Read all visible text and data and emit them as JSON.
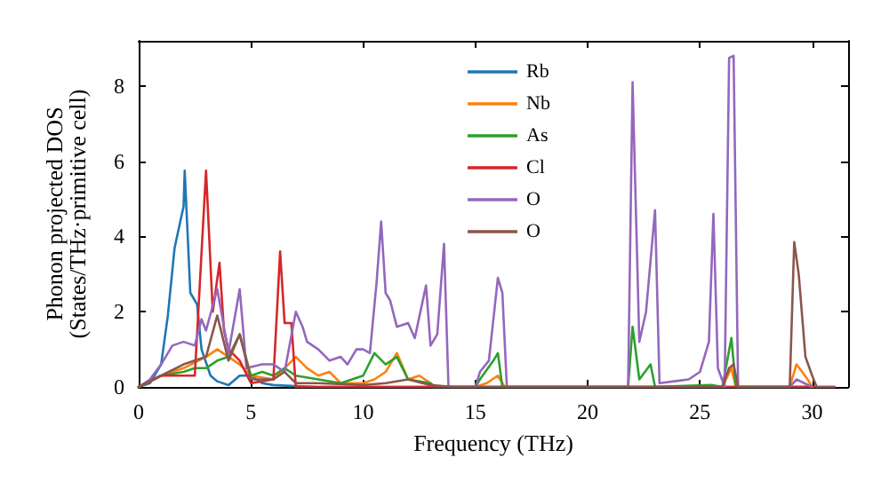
{
  "chart_data": {
    "type": "line",
    "xlabel": "Frequency (THz)",
    "ylabel": "Phonon projected DOS\n(States/THz·primitive cell)",
    "xlim": [
      0,
      31.6
    ],
    "ylim": [
      0,
      9.2
    ],
    "xticks": [
      0,
      5,
      10,
      15,
      20,
      25,
      30
    ],
    "yticks": [
      0,
      2,
      4,
      6,
      8
    ],
    "grid": false,
    "legend": "top",
    "marker": "none",
    "line_style": "solid",
    "series": [
      {
        "name": "Rb",
        "color": "#1f77b4",
        "x": [
          0,
          0.5,
          1,
          1.3,
          1.6,
          2,
          2.05,
          2.3,
          2.6,
          2.8,
          3.2,
          3.5,
          4,
          4.5,
          5,
          5.5,
          6,
          7,
          8,
          30
        ],
        "values": [
          0,
          0.1,
          0.6,
          1.9,
          3.7,
          4.8,
          5.75,
          2.5,
          2.2,
          1.0,
          0.3,
          0.15,
          0.05,
          0.3,
          0.3,
          0.1,
          0.05,
          0.02,
          0,
          0
        ]
      },
      {
        "name": "Nb",
        "color": "#ff7f0e",
        "x": [
          0,
          1,
          2,
          3,
          3.5,
          4,
          4.5,
          5,
          6,
          6.5,
          7,
          7.5,
          8,
          8.5,
          9,
          10,
          10.5,
          11,
          11.5,
          12,
          12.5,
          13,
          13.1,
          15,
          15.5,
          16,
          16.3,
          26,
          26.4,
          26.6,
          29,
          29.3,
          29.8,
          30
        ],
        "values": [
          0,
          0.3,
          0.5,
          0.8,
          1.0,
          0.8,
          0.6,
          0.3,
          0.2,
          0.5,
          0.8,
          0.5,
          0.3,
          0.4,
          0.1,
          0.1,
          0.2,
          0.4,
          0.9,
          0.2,
          0.3,
          0.1,
          0,
          0,
          0.1,
          0.3,
          0,
          0,
          0.5,
          0,
          0,
          0.6,
          0.2,
          0
        ]
      },
      {
        "name": "As",
        "color": "#2ca02c",
        "x": [
          0,
          1,
          2,
          2.5,
          3,
          3.5,
          4,
          4.5,
          5,
          5.5,
          6,
          6.5,
          7,
          8,
          9,
          10,
          10.5,
          11,
          11.5,
          12,
          13,
          13.2,
          15,
          15.2,
          15.8,
          16,
          16.2,
          21.8,
          22,
          22.3,
          22.8,
          23,
          25.5,
          26,
          26.4,
          26.6,
          30
        ],
        "values": [
          0,
          0.3,
          0.4,
          0.5,
          0.5,
          0.7,
          0.8,
          1.4,
          0.3,
          0.4,
          0.3,
          0.5,
          0.3,
          0.2,
          0.1,
          0.3,
          0.9,
          0.6,
          0.8,
          0.2,
          0.1,
          0,
          0,
          0.2,
          0.7,
          0.9,
          0,
          0,
          1.6,
          0.2,
          0.6,
          0,
          0.05,
          0,
          1.3,
          0,
          0
        ]
      },
      {
        "name": "Cl",
        "color": "#d62728",
        "x": [
          0,
          1,
          2,
          2.5,
          3,
          3.3,
          3.6,
          3.8,
          4,
          4.5,
          5,
          6,
          6.3,
          6.5,
          6.8,
          7,
          31
        ],
        "values": [
          0,
          0.3,
          0.3,
          0.3,
          5.75,
          2.0,
          3.3,
          1.5,
          1.0,
          0.7,
          0.1,
          0.2,
          3.6,
          1.7,
          1.7,
          0,
          0
        ]
      },
      {
        "name": "O",
        "color": "#9467bd",
        "x": [
          0,
          0.5,
          1,
          1.5,
          2,
          2.5,
          2.8,
          3,
          3.5,
          4,
          4.5,
          4.8,
          5.5,
          6,
          6.5,
          7,
          7.3,
          7.5,
          8,
          8.5,
          9,
          9.3,
          9.7,
          10,
          10.3,
          10.6,
          10.8,
          11,
          11.2,
          11.5,
          12,
          12.3,
          12.8,
          13,
          13.3,
          13.6,
          13.8,
          15,
          15.2,
          15.6,
          16,
          16.2,
          16.4,
          21.8,
          22,
          22.3,
          22.6,
          23,
          23.2,
          24.5,
          25,
          25.4,
          25.6,
          25.8,
          26.1,
          26.3,
          26.5,
          26.7,
          29,
          29.3,
          30
        ],
        "values": [
          0,
          0.2,
          0.6,
          1.1,
          1.2,
          1.1,
          1.8,
          1.5,
          2.6,
          0.9,
          2.6,
          0.5,
          0.6,
          0.6,
          0.4,
          2.0,
          1.6,
          1.2,
          1.0,
          0.7,
          0.8,
          0.6,
          1.0,
          1.0,
          0.9,
          2.8,
          4.4,
          2.5,
          2.3,
          1.6,
          1.7,
          1.3,
          2.7,
          1.1,
          1.4,
          3.8,
          0,
          0,
          0.4,
          0.7,
          2.9,
          2.5,
          0,
          0,
          8.1,
          1.2,
          2.0,
          4.7,
          0.1,
          0.2,
          0.4,
          1.2,
          4.6,
          0.5,
          0,
          8.75,
          8.8,
          0,
          0,
          0.2,
          0
        ]
      },
      {
        "name": "O",
        "color": "#8c564b",
        "x": [
          0,
          1,
          2,
          2.5,
          3,
          3.5,
          4,
          4.5,
          5,
          6,
          6.5,
          7,
          8,
          10,
          11,
          12,
          13,
          14,
          26,
          26.3,
          26.5,
          26.7,
          29,
          29.2,
          29.4,
          29.7,
          30,
          30.2,
          31
        ],
        "values": [
          0,
          0.3,
          0.6,
          0.7,
          0.8,
          1.9,
          0.7,
          1.4,
          0.2,
          0.2,
          0.4,
          0.1,
          0.1,
          0.05,
          0.1,
          0.2,
          0.05,
          0,
          0,
          0.5,
          0.6,
          0,
          0,
          3.85,
          3.0,
          0.8,
          0.3,
          0,
          0
        ]
      }
    ]
  }
}
